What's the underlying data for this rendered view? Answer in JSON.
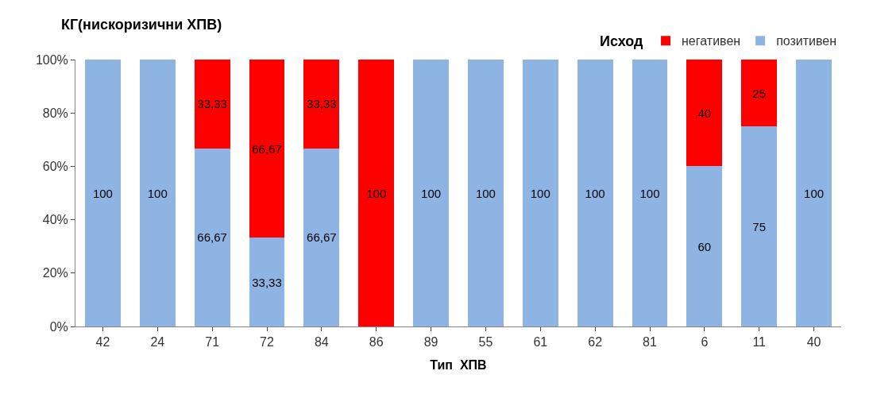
{
  "chart_data": {
    "type": "bar",
    "stacked": true,
    "title": "КГ(нискоризични ХПВ)",
    "xlabel": "Тип  ХПВ",
    "legend_title": "Исход",
    "legend": "top right",
    "categories": [
      "42",
      "24",
      "71",
      "72",
      "84",
      "86",
      "89",
      "55",
      "61",
      "62",
      "81",
      "6",
      "11",
      "40"
    ],
    "series": [
      {
        "name": "позитивен",
        "color": "#8eb4e3",
        "values": [
          100,
          100,
          66.67,
          33.33,
          66.67,
          0,
          100,
          100,
          100,
          100,
          100,
          60,
          75,
          100
        ],
        "value_labels": [
          "100",
          "100",
          "66,67",
          "33,33",
          "66,67",
          null,
          "100",
          "100",
          "100",
          "100",
          "100",
          "60",
          "75",
          "100"
        ]
      },
      {
        "name": "негативен",
        "color": "#ff0000",
        "values": [
          0,
          0,
          33.33,
          66.67,
          33.33,
          100,
          0,
          0,
          0,
          0,
          0,
          40,
          25,
          0
        ],
        "value_labels": [
          null,
          null,
          "33,33",
          "66,67",
          "33,33",
          "100",
          null,
          null,
          null,
          null,
          null,
          "40",
          "25",
          null
        ]
      }
    ],
    "ylim": [
      0,
      100
    ],
    "yticks": [
      {
        "value": 0,
        "label": "0%"
      },
      {
        "value": 20,
        "label": "20%"
      },
      {
        "value": 40,
        "label": "40%"
      },
      {
        "value": 60,
        "label": "60%"
      },
      {
        "value": 80,
        "label": "80%"
      },
      {
        "value": 100,
        "label": "100%"
      }
    ],
    "grid": false
  }
}
